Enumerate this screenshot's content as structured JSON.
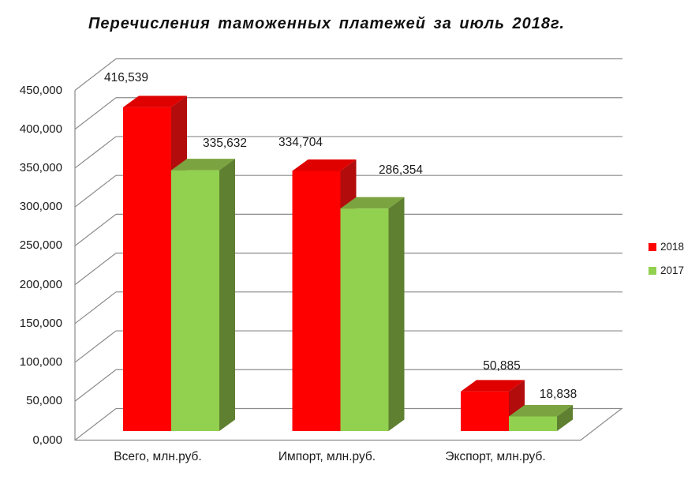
{
  "title": "Перечисления таможенных платежей за июль 2018г.",
  "colors": {
    "grid": "#8B8B8B",
    "text": "#1A1A1A",
    "background": "#FFFFFF"
  },
  "legend": {
    "position": "right",
    "items": [
      {
        "label": "2018",
        "color": "#FE0000"
      },
      {
        "label": "2017",
        "color": "#92D050"
      }
    ]
  },
  "chart_data": {
    "type": "bar",
    "projection": "3d",
    "title": "Перечисления таможенных платежей за июль 2018г.",
    "categories": [
      "Всего, млн.руб.",
      "Импорт, млн.руб.",
      "Экспорт, млн.руб."
    ],
    "series": [
      {
        "name": "2018",
        "values": [
          416.539,
          334.704,
          50.885
        ],
        "data_labels": [
          "416,539",
          "334,704",
          "50,885"
        ],
        "color_front": "#FE0000",
        "color_top": "#DF0000",
        "color_side": "#B20C0C"
      },
      {
        "name": "2017",
        "values": [
          335.632,
          286.354,
          18.838
        ],
        "data_labels": [
          "335,632",
          "286,354",
          "18,838"
        ],
        "color_front": "#92D050",
        "color_top": "#7BA440",
        "color_side": "#5F8030"
      }
    ],
    "ylim": [
      0,
      450
    ],
    "ytick_step": 50,
    "yticks": [
      {
        "value": 0,
        "label": "0,000"
      },
      {
        "value": 50,
        "label": "50,000"
      },
      {
        "value": 100,
        "label": "100,000"
      },
      {
        "value": 150,
        "label": "150,000"
      },
      {
        "value": 200,
        "label": "200,000"
      },
      {
        "value": 250,
        "label": "250,000"
      },
      {
        "value": 300,
        "label": "300,000"
      },
      {
        "value": 350,
        "label": "350,000"
      },
      {
        "value": 400,
        "label": "400,000"
      },
      {
        "value": 450,
        "label": "450,000"
      }
    ],
    "grid": true,
    "legend_position": "right"
  }
}
